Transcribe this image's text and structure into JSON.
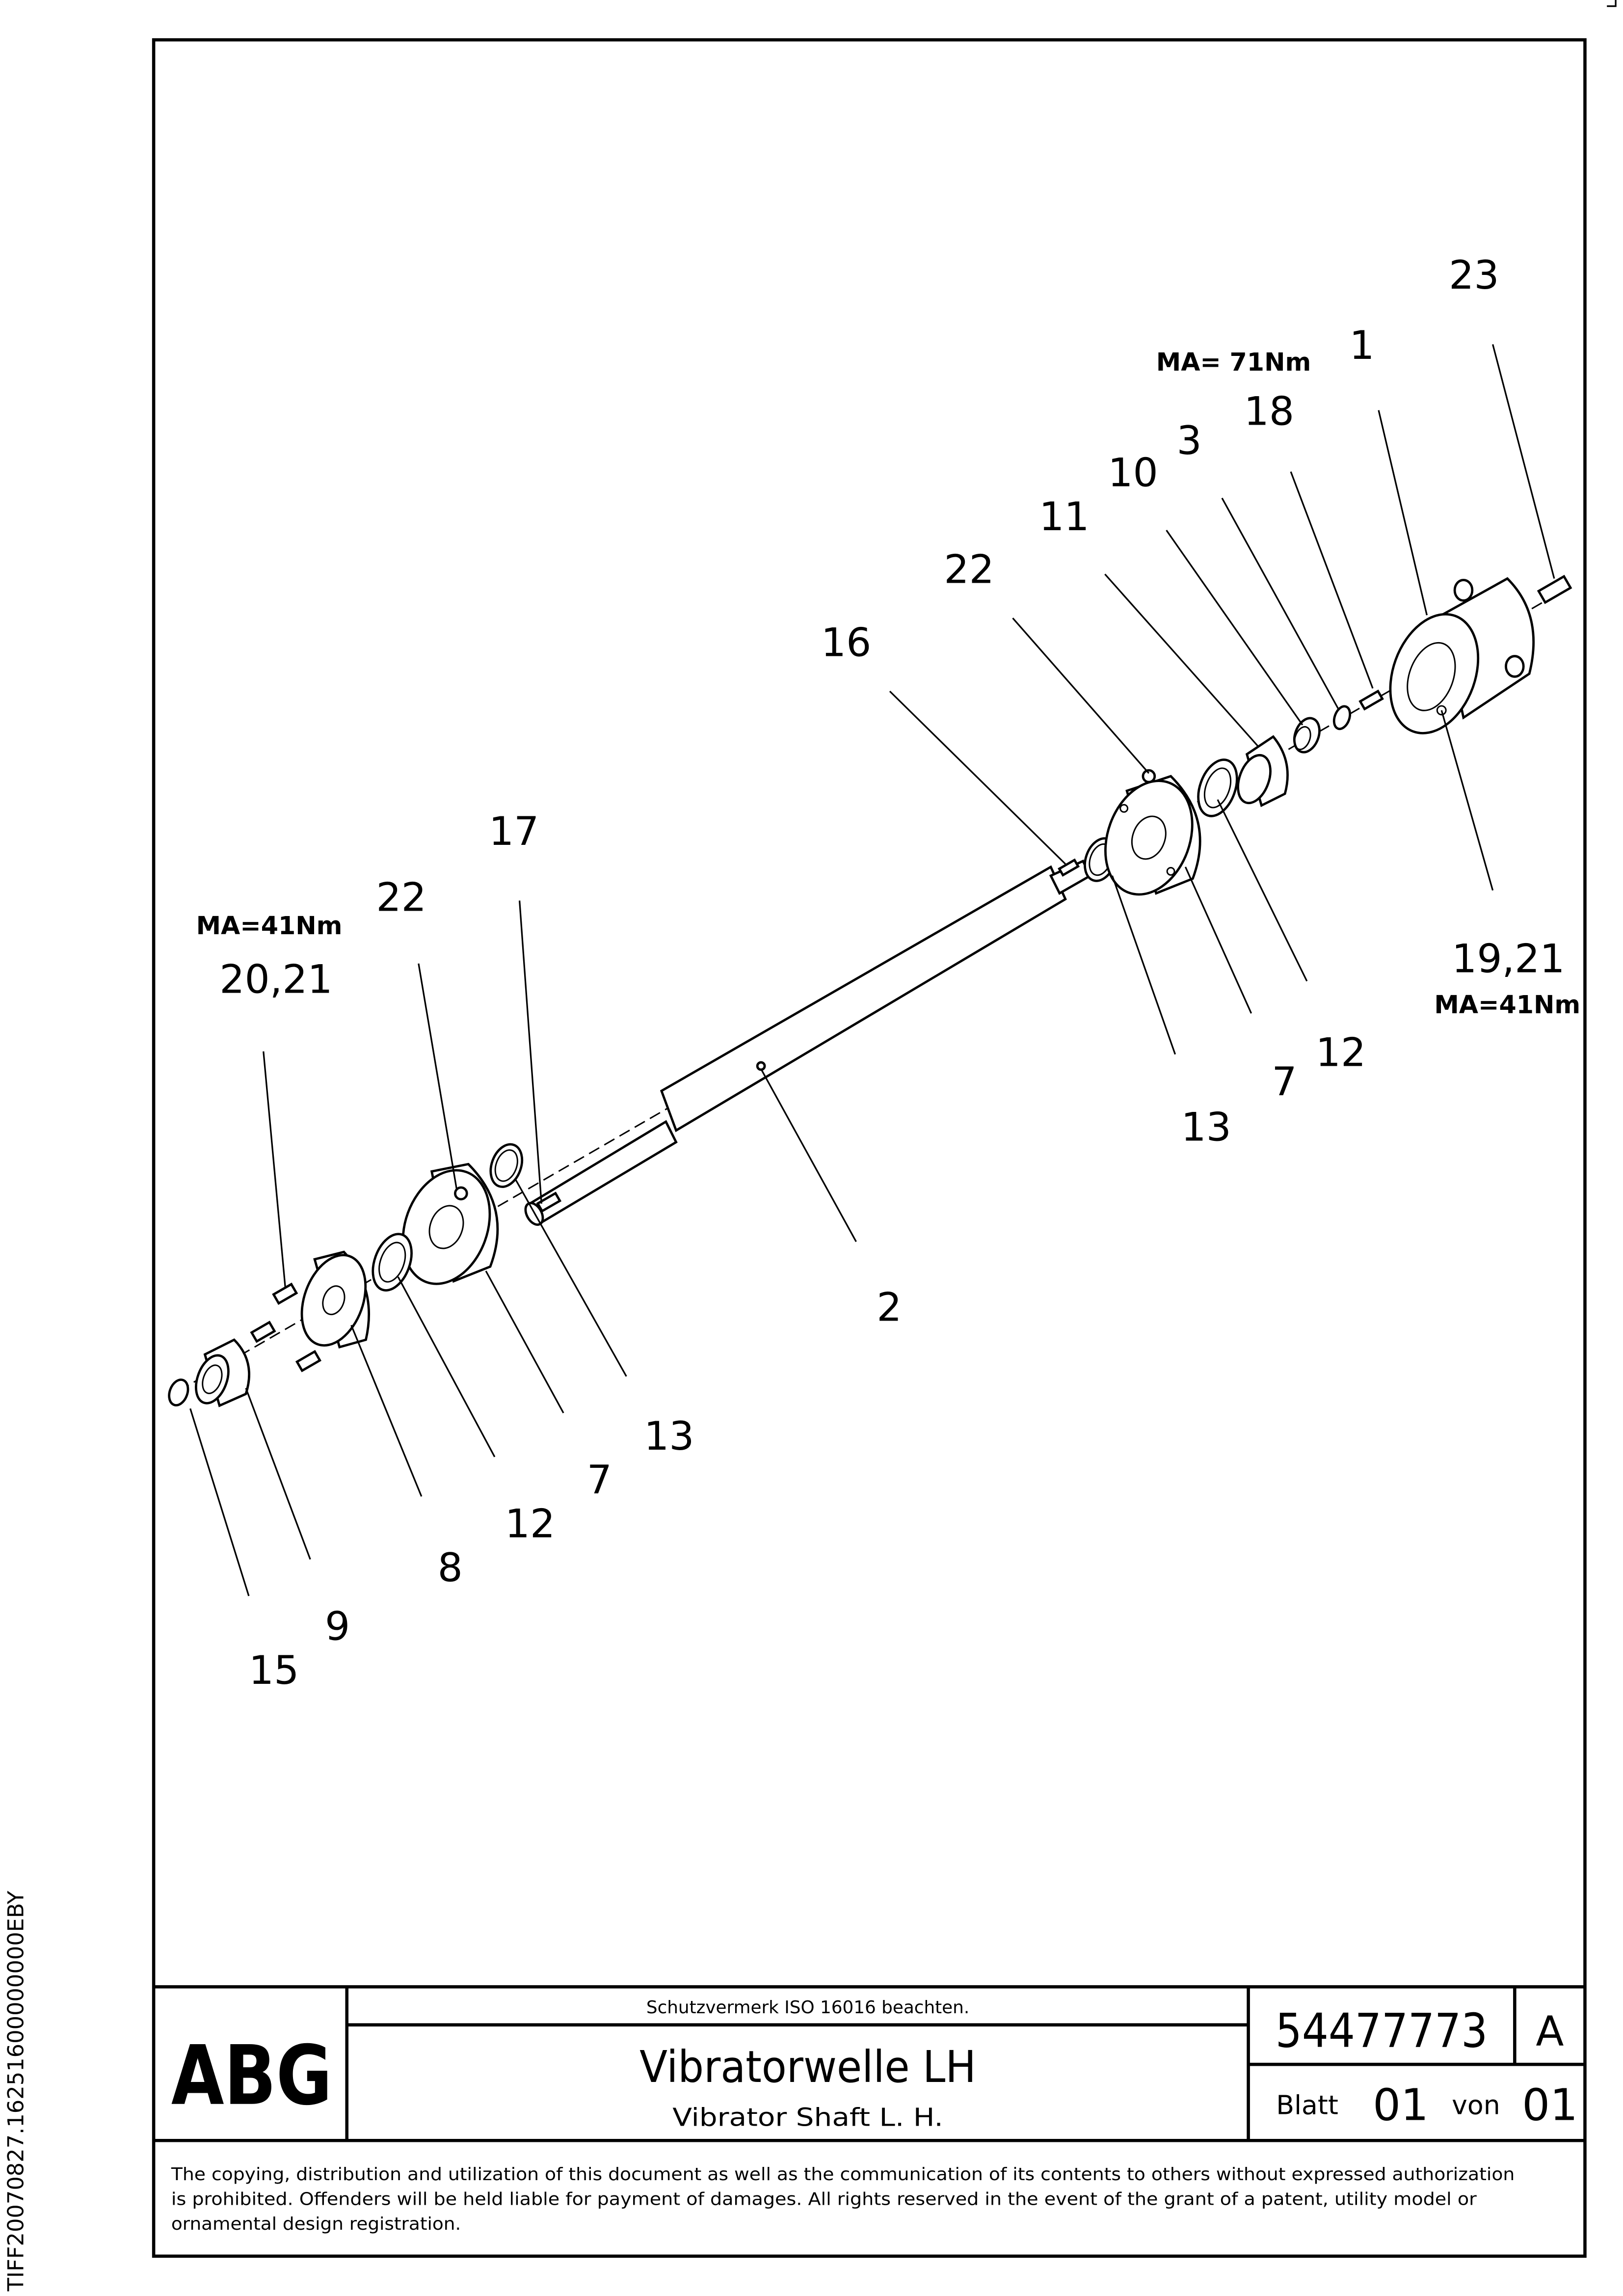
{
  "side_code": "TIFF20070827.16251600000000EBY",
  "callouts": [
    {
      "id": "c23",
      "text": "23"
    },
    {
      "id": "c1",
      "text": "1"
    },
    {
      "id": "c18",
      "text": "18"
    },
    {
      "id": "c3",
      "text": "3"
    },
    {
      "id": "c10",
      "text": "10"
    },
    {
      "id": "c11",
      "text": "11"
    },
    {
      "id": "c22r",
      "text": "22"
    },
    {
      "id": "c16",
      "text": "16"
    },
    {
      "id": "c17",
      "text": "17"
    },
    {
      "id": "c22l",
      "text": "22"
    },
    {
      "id": "c2021",
      "text": "20,21"
    },
    {
      "id": "c1921",
      "text": "19,21"
    },
    {
      "id": "c12r",
      "text": "12"
    },
    {
      "id": "c7r",
      "text": "7"
    },
    {
      "id": "c13r",
      "text": "13"
    },
    {
      "id": "c2",
      "text": "2"
    },
    {
      "id": "c13l",
      "text": "13"
    },
    {
      "id": "c7l",
      "text": "7"
    },
    {
      "id": "c12l",
      "text": "12"
    },
    {
      "id": "c8",
      "text": "8"
    },
    {
      "id": "c9",
      "text": "9"
    },
    {
      "id": "c15",
      "text": "15"
    }
  ],
  "torques": {
    "top": "MA= 71Nm",
    "left": "MA=41Nm",
    "right": "MA=41Nm"
  },
  "title_block": {
    "logo": "ABG",
    "protection_note": "Schutzvermerk ISO 16016 beachten.",
    "title_de": "Vibratorwelle LH",
    "title_en": "Vibrator Shaft L. H.",
    "part_number": "54477773",
    "revision": "A",
    "sheet_label": "Blatt",
    "sheet_number": "01",
    "of_label": "von",
    "sheet_total": "01"
  },
  "copyright": [
    "The copying, distribution and utilization of this document as well as the communication of its contents to others without expressed authorization",
    "is prohibited. Offenders will be held liable for payment of damages. All rights reserved in the event of the grant of a patent, utility model or",
    "ornamental design registration."
  ]
}
